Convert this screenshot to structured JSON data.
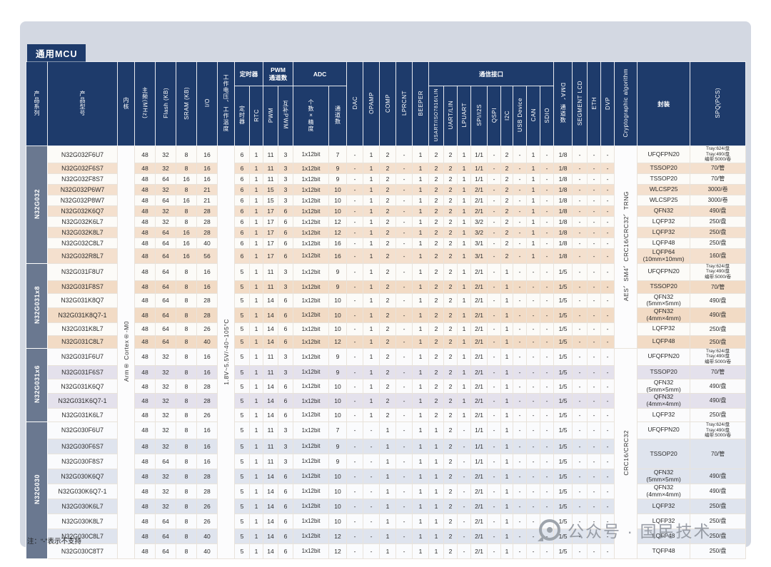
{
  "page": {
    "title_badge": "通用MCU",
    "note": "注：“-”表示不支持",
    "watermark": "公众号 · 国民技术"
  },
  "header": {
    "series": "产品系列",
    "model": "产品型号",
    "core": "内核",
    "freq": "主频(MHz)",
    "flash": "Flash (KB)",
    "sram": "SRAM (KB)",
    "io": "I/O",
    "voltage": "工作电压、工作温度",
    "timer_group": "定时器",
    "timer": "定时器",
    "rtc": "RTC",
    "pwm_group": "PWM\n通道数",
    "pwm": "PWM",
    "cpwm": "互补PWM",
    "adc_group": "ADC",
    "adc_spec": "个数×精度",
    "adc_ch": "通道数",
    "dac": "DAC",
    "opamp": "OPAMP",
    "comp": "COMP",
    "lprcnt": "LPRCNT",
    "beeper": "BEEPER",
    "comm_group": "通信接口",
    "comm": [
      "USART/ISO7816/LIN",
      "UART/LIN",
      "LPUART",
      "SPI/I2S",
      "QSPI",
      "I2C",
      "USB Device",
      "CAN",
      "SDIO"
    ],
    "dma": "DMA、通道数",
    "seglcd": "SEGMENT LCD",
    "eth": "ETH",
    "dvp": "DVP",
    "crypto": "Cryptographic algorithm",
    "package": "封装",
    "spq": "SPQ(PCS)"
  },
  "table": {
    "core": "Arm® Cortex®-M0",
    "voltage": "1.8V~5.5V/-40~105°C",
    "crypto_spans": [
      {
        "label": "AES、SM4、CRC16/CRC32、TRNG",
        "rows": 16
      },
      {
        "label": "CRC16/CRC32",
        "rows": 14
      }
    ],
    "groups": [
      {
        "name": "N32G032",
        "css": "g032",
        "defaults": {
          "freq": "48",
          "timer": "6",
          "rtc": "1",
          "adc": "1x12bit",
          "dac": "-",
          "opamp": "1",
          "comp": "2",
          "lprcnt": "-",
          "beeper": "1",
          "usart": "2",
          "uart": "2",
          "lpuart": "1",
          "qspi": "-",
          "i2c": "2",
          "usb": "-",
          "can": "1",
          "sdio": "-",
          "dma": "1/8",
          "seglcd": "-",
          "eth": "-",
          "dvp": "-"
        },
        "rows": [
          {
            "model": "N32G032F6U7",
            "flash": "32",
            "sram": "8",
            "io": "16",
            "pwm": "11",
            "cpwm": "3",
            "ch": "7",
            "spi": "1/1",
            "pkg": "UFQFPN20",
            "spq": [
              "Tray:624/盘",
              "Tray:490/盘",
              "编带:5000/卷"
            ]
          },
          {
            "model": "N32G032F6S7",
            "flash": "32",
            "sram": "8",
            "io": "16",
            "pwm": "11",
            "cpwm": "3",
            "ch": "9",
            "spi": "1/1",
            "pkg": "TSSOP20",
            "spq": "70/管"
          },
          {
            "model": "N32G032F8S7",
            "flash": "64",
            "sram": "16",
            "io": "16",
            "pwm": "11",
            "cpwm": "3",
            "ch": "9",
            "spi": "1/1",
            "pkg": "TSSOP20",
            "spq": "70/管"
          },
          {
            "model": "N32G032P6W7",
            "flash": "32",
            "sram": "8",
            "io": "21",
            "pwm": "15",
            "cpwm": "3",
            "ch": "10",
            "spi": "2/1",
            "pkg": "WLCSP25",
            "spq": "3000/卷"
          },
          {
            "model": "N32G032P8W7",
            "flash": "64",
            "sram": "16",
            "io": "21",
            "pwm": "15",
            "cpwm": "3",
            "ch": "10",
            "spi": "2/1",
            "pkg": "WLCSP25",
            "spq": "3000/卷"
          },
          {
            "model": "N32G032K6Q7",
            "flash": "32",
            "sram": "8",
            "io": "28",
            "pwm": "17",
            "cpwm": "6",
            "ch": "10",
            "spi": "2/1",
            "pkg": "QFN32",
            "spq": "490/盘"
          },
          {
            "model": "N32G032K6L7",
            "flash": "32",
            "sram": "8",
            "io": "28",
            "pwm": "17",
            "cpwm": "6",
            "ch": "12",
            "spi": "3/2",
            "pkg": "LQFP32",
            "spq": "250/盘"
          },
          {
            "model": "N32G032K8L7",
            "flash": "64",
            "sram": "16",
            "io": "28",
            "pwm": "17",
            "cpwm": "6",
            "ch": "12",
            "spi": "3/2",
            "pkg": "LQFP32",
            "spq": "250/盘"
          },
          {
            "model": "N32G032C8L7",
            "flash": "64",
            "sram": "16",
            "io": "40",
            "pwm": "17",
            "cpwm": "6",
            "ch": "16",
            "spi": "3/1",
            "pkg": "LQFP48",
            "spq": "250/盘"
          },
          {
            "model": "N32G032R8L7",
            "flash": "64",
            "sram": "16",
            "io": "56",
            "pwm": "17",
            "cpwm": "6",
            "ch": "16",
            "spi": "3/1",
            "pkg": "LQFP64\n(10mm×10mm)",
            "spq": "160/盘"
          }
        ]
      },
      {
        "name": "N32G031x8",
        "css": "g031x8",
        "defaults": {
          "freq": "48",
          "timer": "5",
          "rtc": "1",
          "adc": "1x12bit",
          "dac": "-",
          "opamp": "1",
          "comp": "2",
          "lprcnt": "-",
          "beeper": "1",
          "usart": "2",
          "uart": "2",
          "lpuart": "1",
          "spi": "2/1",
          "qspi": "-",
          "i2c": "1",
          "usb": "-",
          "can": "-",
          "sdio": "-",
          "dma": "1/5",
          "seglcd": "-",
          "eth": "-",
          "dvp": "-"
        },
        "rows": [
          {
            "model": "N32G031F8U7",
            "flash": "64",
            "sram": "8",
            "io": "16",
            "pwm": "11",
            "cpwm": "3",
            "ch": "9",
            "pkg": "UFQFPN20",
            "spq": [
              "Tray:624/盘",
              "Tray:490/盘",
              "编带:5000/卷"
            ]
          },
          {
            "model": "N32G031F8S7",
            "flash": "64",
            "sram": "8",
            "io": "16",
            "pwm": "11",
            "cpwm": "3",
            "ch": "9",
            "pkg": "TSSOP20",
            "spq": "70/管"
          },
          {
            "model": "N32G031K8Q7",
            "flash": "64",
            "sram": "8",
            "io": "28",
            "pwm": "14",
            "cpwm": "6",
            "ch": "10",
            "pkg": "QFN32\n(5mm×5mm)",
            "spq": "490/盘"
          },
          {
            "model": "N32G031K8Q7-1",
            "flash": "64",
            "sram": "8",
            "io": "28",
            "pwm": "14",
            "cpwm": "6",
            "ch": "10",
            "pkg": "QFN32\n(4mm×4mm)",
            "spq": "490/盘"
          },
          {
            "model": "N32G031K8L7",
            "flash": "64",
            "sram": "8",
            "io": "26",
            "pwm": "14",
            "cpwm": "6",
            "ch": "10",
            "pkg": "LQFP32",
            "spq": "250/盘"
          },
          {
            "model": "N32G031C8L7",
            "flash": "64",
            "sram": "8",
            "io": "40",
            "pwm": "14",
            "cpwm": "6",
            "ch": "12",
            "pkg": "LQFP48",
            "spq": "250/盘"
          }
        ]
      },
      {
        "name": "N32G031x6",
        "css": "g031x6",
        "defaults": {
          "freq": "48",
          "timer": "5",
          "rtc": "1",
          "adc": "1x12bit",
          "dac": "-",
          "opamp": "1",
          "comp": "2",
          "lprcnt": "-",
          "beeper": "1",
          "usart": "2",
          "uart": "2",
          "lpuart": "1",
          "spi": "2/1",
          "qspi": "-",
          "i2c": "1",
          "usb": "-",
          "can": "-",
          "sdio": "-",
          "dma": "1/5",
          "seglcd": "-",
          "eth": "-",
          "dvp": "-"
        },
        "rows": [
          {
            "model": "N32G031F6U7",
            "flash": "32",
            "sram": "8",
            "io": "16",
            "pwm": "11",
            "cpwm": "3",
            "ch": "9",
            "pkg": "UFQFPN20",
            "spq": [
              "Tray:624/盘",
              "Tray:490/盘",
              "编带:5000/卷"
            ]
          },
          {
            "model": "N32G031F6S7",
            "flash": "32",
            "sram": "8",
            "io": "16",
            "pwm": "11",
            "cpwm": "3",
            "ch": "9",
            "pkg": "TSSOP20",
            "spq": "70/管"
          },
          {
            "model": "N32G031K6Q7",
            "flash": "32",
            "sram": "8",
            "io": "28",
            "pwm": "14",
            "cpwm": "6",
            "ch": "10",
            "pkg": "QFN32\n(5mm×5mm)",
            "spq": "490/盘"
          },
          {
            "model": "N32G031K6Q7-1",
            "flash": "32",
            "sram": "8",
            "io": "28",
            "pwm": "14",
            "cpwm": "6",
            "ch": "10",
            "pkg": "QFN32\n(4mm×4mm)",
            "spq": "490/盘"
          },
          {
            "model": "N32G031K6L7",
            "flash": "32",
            "sram": "8",
            "io": "26",
            "pwm": "14",
            "cpwm": "6",
            "ch": "10",
            "pkg": "LQFP32",
            "spq": "250/盘"
          }
        ]
      },
      {
        "name": "N32G030",
        "css": "g030",
        "defaults": {
          "freq": "48",
          "timer": "5",
          "rtc": "1",
          "adc": "1x12bit",
          "dac": "-",
          "opamp": "-",
          "comp": "1",
          "lprcnt": "-",
          "beeper": "1",
          "usart": "1",
          "uart": "2",
          "lpuart": "-",
          "qspi": "-",
          "i2c": "1",
          "usb": "-",
          "can": "-",
          "sdio": "-",
          "dma": "1/5",
          "seglcd": "-",
          "eth": "-",
          "dvp": "-"
        },
        "rows": [
          {
            "model": "N32G030F6U7",
            "flash": "32",
            "sram": "8",
            "io": "16",
            "pwm": "11",
            "cpwm": "3",
            "ch": "7",
            "spi": "1/1",
            "pkg": "UFQFPN20",
            "spq": [
              "Tray:624/盘",
              "Tray:490/盘",
              "编带:5000/卷"
            ]
          },
          {
            "model": "N32G030F6S7",
            "flash": "32",
            "sram": "8",
            "io": "16",
            "pwm": "11",
            "cpwm": "3",
            "ch": "9",
            "spi": "1/1",
            "pkg": "TSSOP20",
            "spq": "70/管",
            "pkg_span": 2
          },
          {
            "model": "N32G030F8S7",
            "flash": "64",
            "sram": "8",
            "io": "16",
            "pwm": "11",
            "cpwm": "3",
            "ch": "9",
            "spi": "1/1",
            "pkg": null,
            "spq": null
          },
          {
            "model": "N32G030K6Q7",
            "flash": "32",
            "sram": "8",
            "io": "28",
            "pwm": "14",
            "cpwm": "6",
            "ch": "10",
            "spi": "2/1",
            "pkg": "QFN32\n(5mm×5mm)",
            "spq": "490/盘"
          },
          {
            "model": "N32G030K6Q7-1",
            "flash": "32",
            "sram": "8",
            "io": "28",
            "pwm": "14",
            "cpwm": "6",
            "ch": "10",
            "spi": "2/1",
            "pkg": "QFN32\n(4mm×4mm)",
            "spq": "490/盘"
          },
          {
            "model": "N32G030K6L7",
            "flash": "32",
            "sram": "8",
            "io": "26",
            "pwm": "14",
            "cpwm": "6",
            "ch": "10",
            "spi": "2/1",
            "pkg": "LQFP32",
            "spq": "250/盘"
          },
          {
            "model": "N32G030K8L7",
            "flash": "64",
            "sram": "8",
            "io": "26",
            "pwm": "14",
            "cpwm": "6",
            "ch": "10",
            "spi": "2/1",
            "pkg": "LQFP32",
            "spq": "250/盘"
          },
          {
            "model": "N32G030C8L7",
            "flash": "64",
            "sram": "8",
            "io": "40",
            "pwm": "14",
            "cpwm": "6",
            "ch": "12",
            "spi": "2/1",
            "pkg": "LQFP48",
            "spq": "250/盘"
          },
          {
            "model": "N32G030C8T7",
            "flash": "64",
            "sram": "8",
            "io": "40",
            "pwm": "14",
            "cpwm": "6",
            "ch": "12",
            "spi": "2/1",
            "pkg": "TQFP48",
            "spq": "250/盘"
          }
        ]
      }
    ]
  }
}
